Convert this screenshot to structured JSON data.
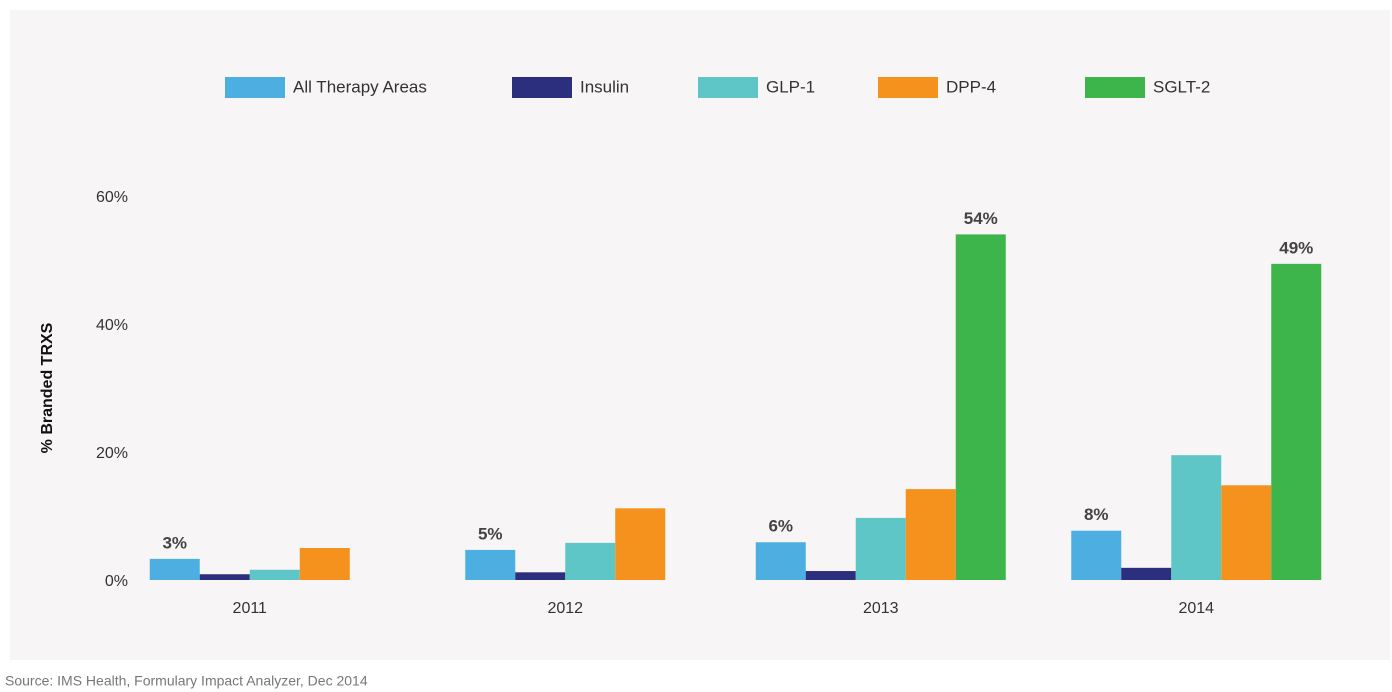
{
  "chart_data": {
    "type": "bar",
    "y_label": "% Branded TRXS",
    "source": "Source: IMS Health, Formulary Impact Analyzer, Dec 2014",
    "categories": [
      "2011",
      "2012",
      "2013",
      "2014"
    ],
    "series": [
      {
        "name": "All Therapy Areas",
        "color": "#4daee2",
        "values": [
          3.3,
          4.7,
          5.9,
          7.7
        ],
        "value_labels": [
          "3%",
          "5%",
          "6%",
          "8%"
        ]
      },
      {
        "name": "Insulin",
        "color": "#2b2f7d",
        "values": [
          0.9,
          1.2,
          1.4,
          1.9
        ]
      },
      {
        "name": "GLP-1",
        "color": "#5ec6c6",
        "values": [
          1.6,
          5.8,
          9.7,
          19.5
        ]
      },
      {
        "name": "DPP-4",
        "color": "#f5921e",
        "values": [
          5.0,
          11.2,
          14.2,
          14.8
        ]
      },
      {
        "name": "SGLT-2",
        "color": "#3db54a",
        "values": [
          null,
          null,
          54,
          49.4
        ],
        "value_labels": [
          null,
          null,
          "54%",
          "49%"
        ]
      }
    ],
    "ylim": [
      0,
      60
    ],
    "yticks": [
      {
        "value": 0,
        "label": "0%"
      },
      {
        "value": 20,
        "label": "20%"
      },
      {
        "value": 40,
        "label": "40%"
      },
      {
        "value": 60,
        "label": "60%"
      }
    ],
    "grid": false,
    "legend": "top"
  }
}
